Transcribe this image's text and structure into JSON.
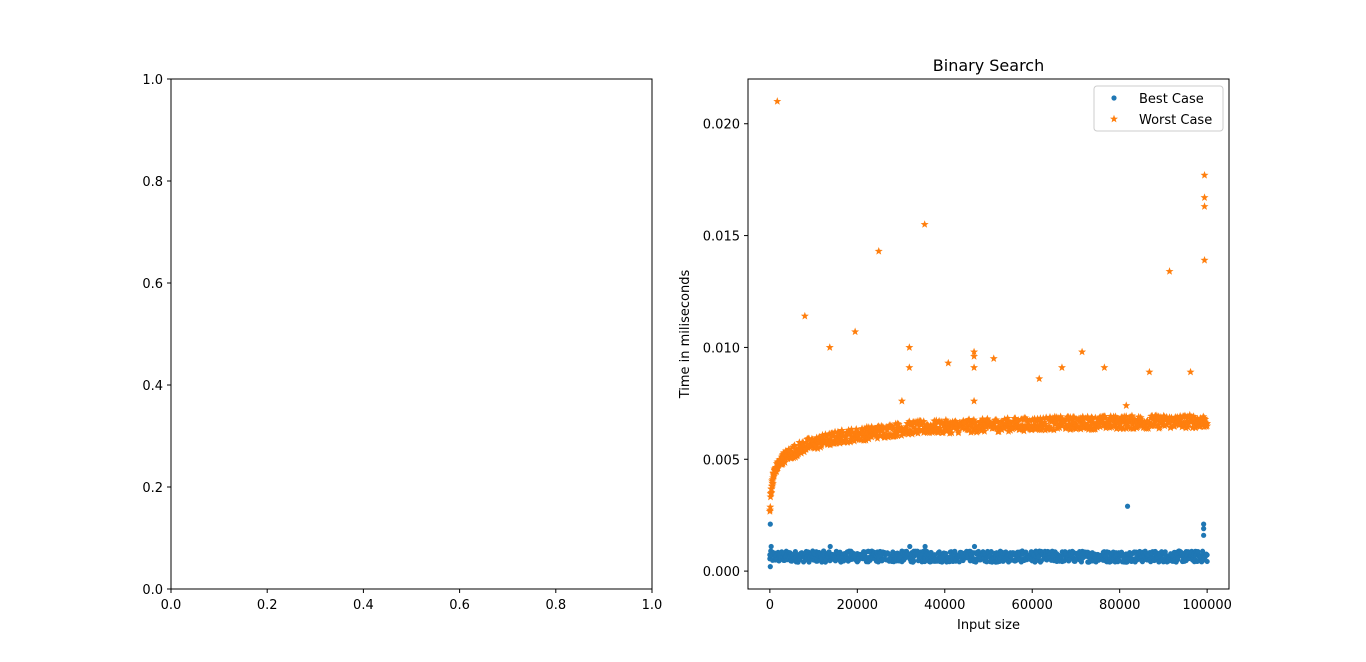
{
  "chart_data": [
    {
      "type": "empty",
      "title": "",
      "xlabel": "",
      "ylabel": "",
      "xlim": [
        0,
        1
      ],
      "ylim": [
        0,
        1
      ],
      "x_ticks": [
        0.0,
        0.2,
        0.4,
        0.6,
        0.8,
        1.0
      ],
      "x_tick_labels": [
        "0.0",
        "0.2",
        "0.4",
        "0.6",
        "0.8",
        "1.0"
      ],
      "y_ticks": [
        0.0,
        0.2,
        0.4,
        0.6,
        0.8,
        1.0
      ],
      "y_tick_labels": [
        "0.0",
        "0.2",
        "0.4",
        "0.6",
        "0.8",
        "1.0"
      ],
      "grid": false,
      "series": []
    },
    {
      "type": "scatter",
      "title": "Binary Search",
      "xlabel": "Input size",
      "ylabel": "Time in miliseconds",
      "xlim": [
        -5000,
        105000
      ],
      "ylim": [
        -0.0008,
        0.022
      ],
      "x_ticks": [
        0,
        20000,
        40000,
        60000,
        80000,
        100000
      ],
      "x_tick_labels": [
        "0",
        "20000",
        "40000",
        "60000",
        "80000",
        "100000"
      ],
      "y_ticks": [
        0.0,
        0.005,
        0.01,
        0.015,
        0.02
      ],
      "y_tick_labels": [
        "0.000",
        "0.005",
        "0.010",
        "0.015",
        "0.020"
      ],
      "grid": false,
      "legend": "top-right",
      "series": [
        {
          "name": "Best Case",
          "marker": "dot",
          "color": "#1f77b4",
          "band": {
            "x_start": 0,
            "x_end": 100000,
            "y_low": 0.0004,
            "y_high": 0.0009
          },
          "points": [
            [
              100,
              0.0002
            ],
            [
              100,
              0.0007
            ],
            [
              100,
              0.0021
            ],
            [
              300,
              0.0011
            ],
            [
              13800,
              0.0011
            ],
            [
              32000,
              0.0011
            ],
            [
              35500,
              0.0011
            ],
            [
              46800,
              0.0011
            ],
            [
              81800,
              0.0029
            ],
            [
              99200,
              0.0021
            ],
            [
              99200,
              0.0019
            ],
            [
              99200,
              0.0016
            ]
          ]
        },
        {
          "name": "Worst Case",
          "marker": "star",
          "color": "#ff7f0e",
          "steps": [
            [
              0,
              0.0026
            ],
            [
              100,
              0.0029
            ],
            [
              200,
              0.0034
            ],
            [
              400,
              0.0038
            ],
            [
              700,
              0.0041
            ],
            [
              1000,
              0.0044
            ],
            [
              1500,
              0.0046
            ],
            [
              2000,
              0.0048
            ],
            [
              3000,
              0.005
            ],
            [
              4000,
              0.0052
            ],
            [
              6000,
              0.0054
            ],
            [
              8000,
              0.0056
            ],
            [
              16000,
              0.006
            ],
            [
              32000,
              0.0064
            ],
            [
              64000,
              0.0066
            ],
            [
              100000,
              0.0067
            ]
          ],
          "points": [
            [
              1700,
              0.021
            ],
            [
              8000,
              0.0114
            ],
            [
              13700,
              0.01
            ],
            [
              19500,
              0.0107
            ],
            [
              24900,
              0.0143
            ],
            [
              30200,
              0.0076
            ],
            [
              31900,
              0.01
            ],
            [
              31900,
              0.0091
            ],
            [
              35400,
              0.0155
            ],
            [
              40800,
              0.0093
            ],
            [
              46700,
              0.0098
            ],
            [
              46700,
              0.0096
            ],
            [
              46700,
              0.0091
            ],
            [
              46700,
              0.0076
            ],
            [
              51200,
              0.0095
            ],
            [
              61600,
              0.0086
            ],
            [
              66800,
              0.0091
            ],
            [
              71400,
              0.0098
            ],
            [
              76500,
              0.0091
            ],
            [
              81500,
              0.0074
            ],
            [
              86800,
              0.0089
            ],
            [
              91400,
              0.0134
            ],
            [
              96200,
              0.0089
            ],
            [
              99400,
              0.0177
            ],
            [
              99400,
              0.0167
            ],
            [
              99400,
              0.0163
            ],
            [
              99400,
              0.0139
            ]
          ]
        }
      ]
    }
  ]
}
